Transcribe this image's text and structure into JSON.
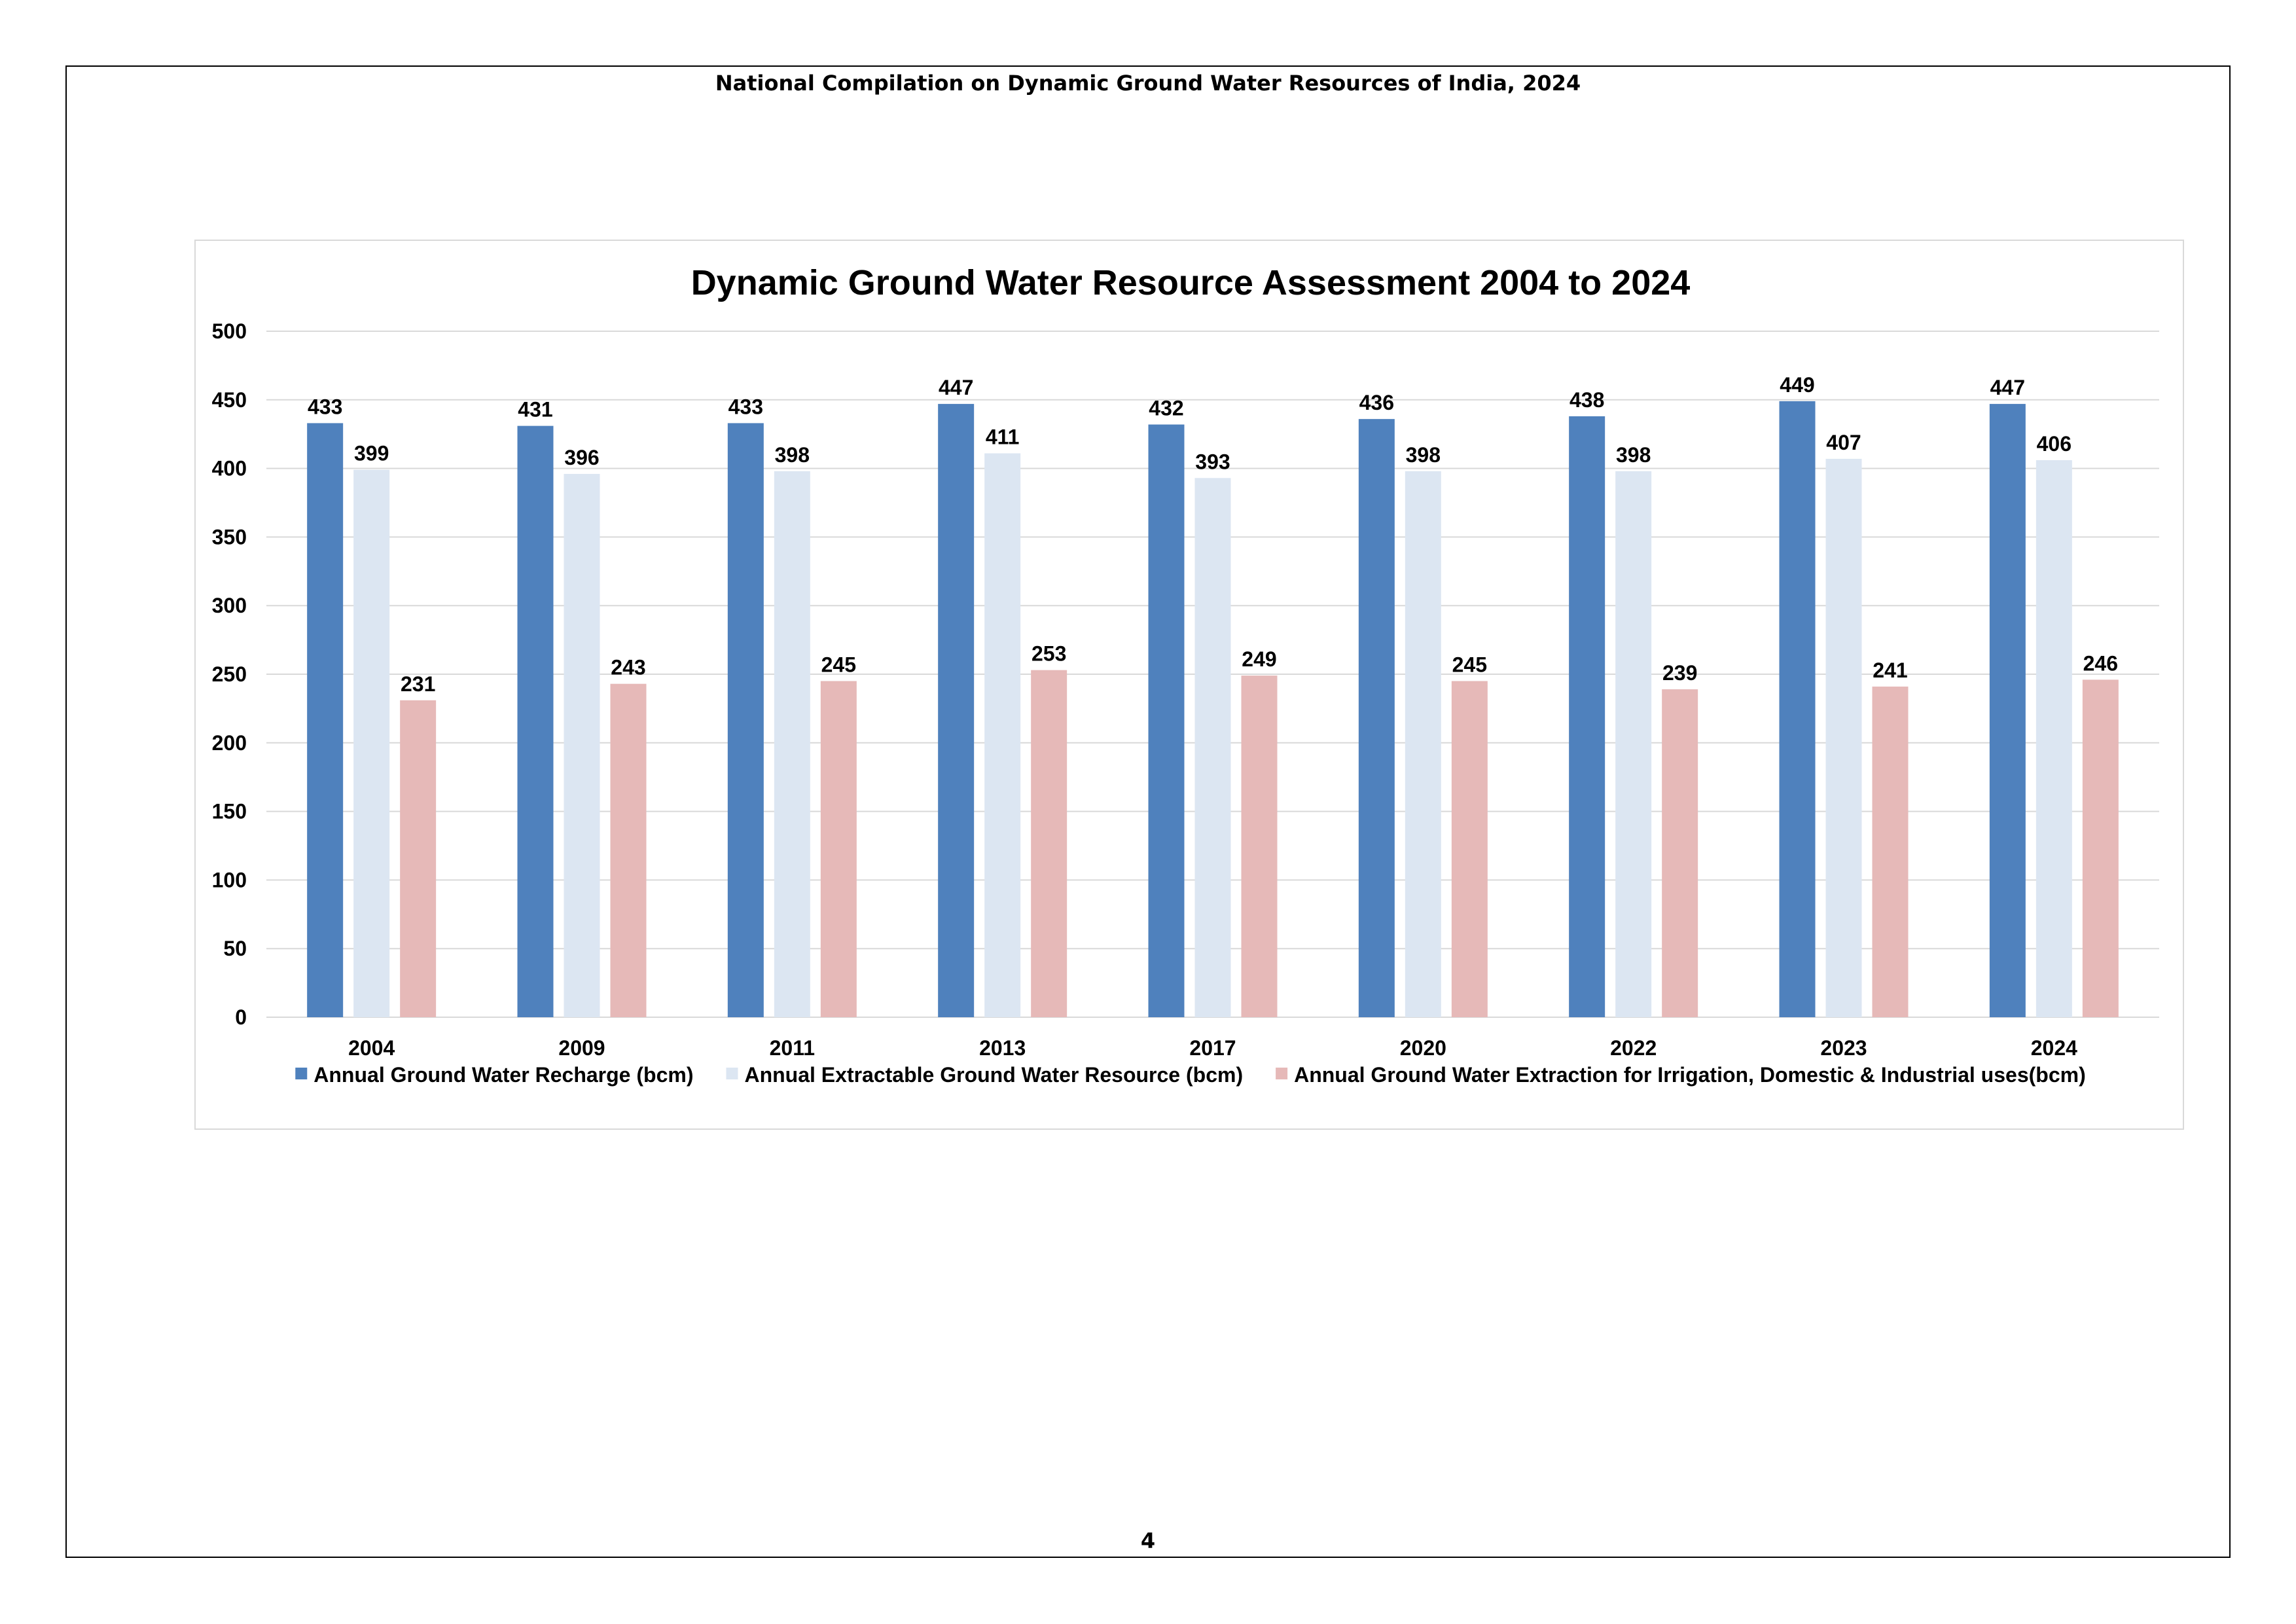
{
  "document": {
    "header": "National Compilation on Dynamic Ground Water Resources of India, 2024",
    "page_number": "4"
  },
  "colors": {
    "recharge": "#4f81bd",
    "extractable": "#dce6f2",
    "extraction": "#e6b9b8",
    "gridline": "#d9d9d9",
    "frame": "#000000"
  },
  "chart_data": {
    "type": "bar",
    "title": "Dynamic Ground Water Resource Assessment 2004 to 2024",
    "xlabel": "",
    "ylabel": "",
    "ylim": [
      0,
      500
    ],
    "yticks": [
      0,
      50,
      100,
      150,
      200,
      250,
      300,
      350,
      400,
      450,
      500
    ],
    "grid": true,
    "legend_position": "bottom",
    "categories": [
      "2004",
      "2009",
      "2011",
      "2013",
      "2017",
      "2020",
      "2022",
      "2023",
      "2024"
    ],
    "series": [
      {
        "name": "Annual Ground Water Recharge (bcm)",
        "color_key": "recharge",
        "values": [
          433,
          431,
          433,
          447,
          432,
          436,
          438,
          449,
          447
        ]
      },
      {
        "name": "Annual Extractable Ground Water Resource (bcm)",
        "color_key": "extractable",
        "values": [
          399,
          396,
          398,
          411,
          393,
          398,
          398,
          407,
          406
        ]
      },
      {
        "name": "Annual Ground Water Extraction for Irrigation, Domestic & Industrial uses(bcm)",
        "color_key": "extraction",
        "values": [
          231,
          243,
          245,
          253,
          249,
          245,
          239,
          241,
          246
        ]
      }
    ]
  }
}
